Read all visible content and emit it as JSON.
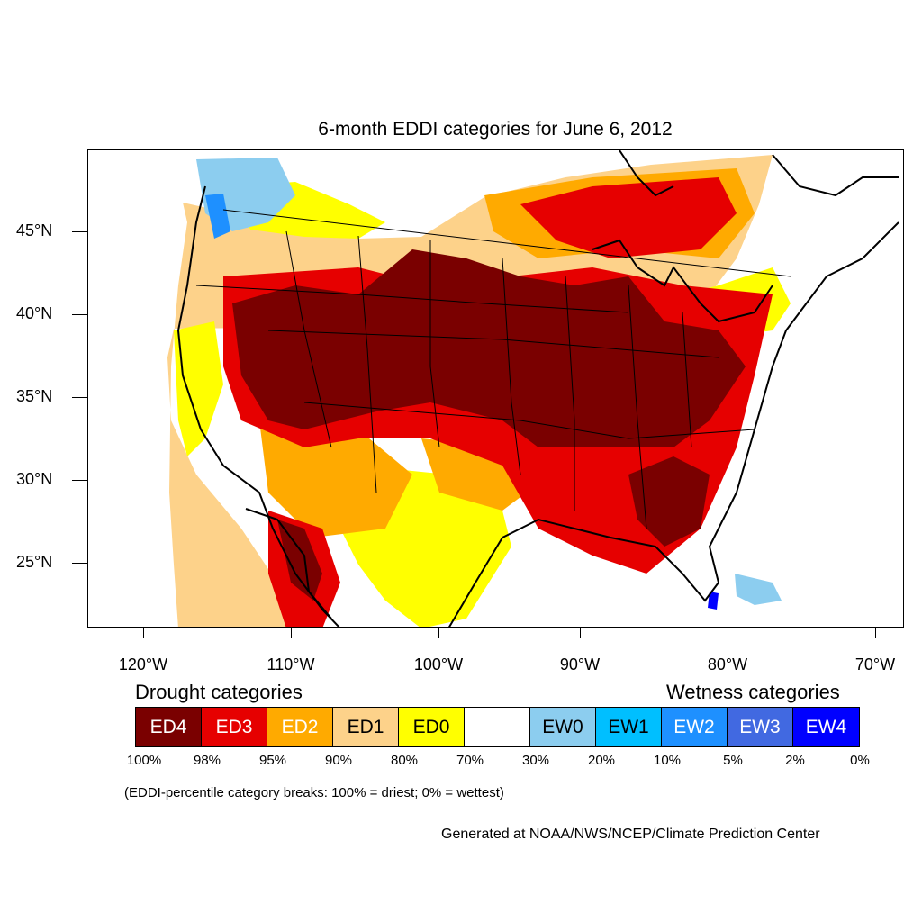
{
  "title": "6-month EDDI categories for June 6, 2012",
  "map": {
    "lat_labels": [
      "45°N",
      "40°N",
      "35°N",
      "30°N",
      "25°N"
    ],
    "lon_labels": [
      "120°W",
      "110°W",
      "100°W",
      "90°W",
      "80°W",
      "70°W"
    ],
    "categories": [
      {
        "code": "ED4",
        "color": "#7a0000"
      },
      {
        "code": "ED3",
        "color": "#e60000"
      },
      {
        "code": "ED2",
        "color": "#ffaa00"
      },
      {
        "code": "ED1",
        "color": "#fdd28a"
      },
      {
        "code": "ED0",
        "color": "#ffff00"
      },
      {
        "code": "",
        "color": "#ffffff"
      },
      {
        "code": "EW0",
        "color": "#8ccdef"
      },
      {
        "code": "EW1",
        "color": "#00bfff"
      },
      {
        "code": "EW2",
        "color": "#1e90ff"
      },
      {
        "code": "EW3",
        "color": "#4169e1"
      },
      {
        "code": "EW4",
        "color": "#0000ff"
      }
    ]
  },
  "legend": {
    "drought_heading": "Drought categories",
    "wetness_heading": "Wetness categories",
    "percentiles": [
      "100%",
      "98%",
      "95%",
      "90%",
      "80%",
      "70%",
      "30%",
      "20%",
      "10%",
      "5%",
      "2%",
      "0%"
    ],
    "note": "(EDDI-percentile category breaks: 100% = driest; 0% = wettest)"
  },
  "credit": "Generated at NOAA/NWS/NCEP/Climate Prediction Center"
}
